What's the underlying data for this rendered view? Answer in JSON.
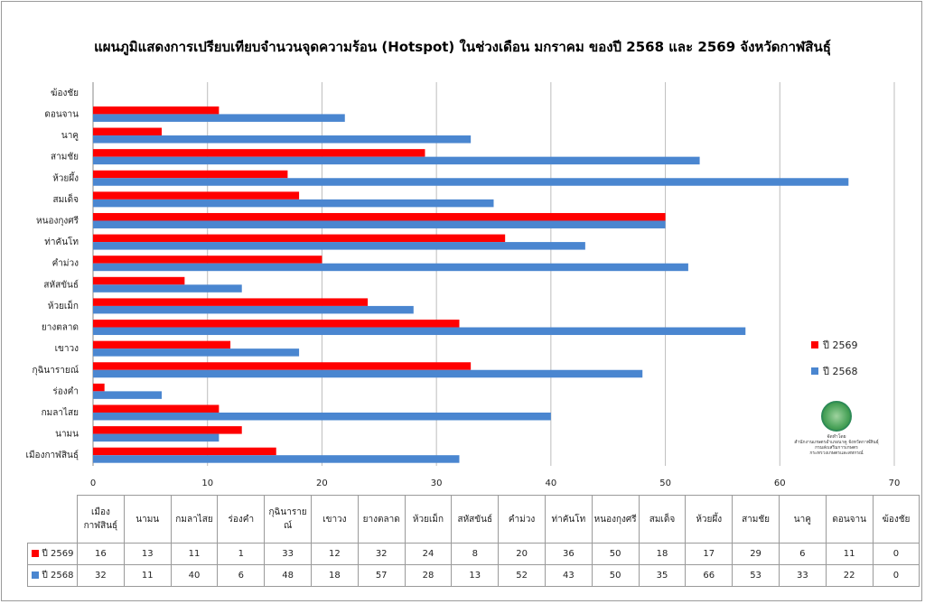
{
  "chart_data": {
    "type": "bar",
    "orientation": "horizontal",
    "title": "แผนภูมิแสดงการเปรียบเทียบจำนวนจุดความร้อน (Hotspot) ในช่วงเดือน มกราคม ของปี 2568 และ 2569 จังหวัดกาฬสินธุ์",
    "categories": [
      "เมืองกาฬสินธุ์",
      "นามน",
      "กมลาไสย",
      "ร่องคำ",
      "กุฉินารายณ์",
      "เขาวง",
      "ยางตลาด",
      "ห้วยเม็ก",
      "สหัสขันธ์",
      "คำม่วง",
      "ท่าคันโท",
      "หนองกุงศรี",
      "สมเด็จ",
      "ห้วยผึ้ง",
      "สามชัย",
      "นาคู",
      "ดอนจาน",
      "ฆ้องชัย"
    ],
    "table_header": [
      "เมือง\nกาฬสินธุ์",
      "นามน",
      "กมลาไสย",
      "ร่องคำ",
      "กุฉินารายณ์",
      "เขาวง",
      "ยางตลาด",
      "ห้วยเม็ก",
      "สหัสขันธ์",
      "คำม่วง",
      "ท่าคันโท",
      "หนองกุงศรี",
      "สมเด็จ",
      "ห้วยผึ้ง",
      "สามชัย",
      "นาคู",
      "ดอนจาน",
      "ฆ้องชัย"
    ],
    "series": [
      {
        "name": "ปี 2569",
        "color": "#ff0000",
        "values": [
          16,
          13,
          11,
          1,
          33,
          12,
          32,
          24,
          8,
          20,
          36,
          50,
          18,
          17,
          29,
          6,
          11,
          0
        ]
      },
      {
        "name": "ปี 2568",
        "color": "#4a86d0",
        "values": [
          32,
          11,
          40,
          6,
          48,
          18,
          57,
          28,
          13,
          52,
          43,
          50,
          35,
          66,
          53,
          33,
          22,
          0
        ]
      }
    ],
    "xlim": [
      0,
      70
    ],
    "xticks": [
      0,
      10,
      20,
      30,
      40,
      50,
      60,
      70
    ],
    "grid": true,
    "legend_position": "right"
  },
  "logo": {
    "icon": "seal-icon",
    "lines": [
      "จัดทำโดย",
      "สำนักงานเกษตรอำเภอนาคู จังหวัดกาฬสินธุ์",
      "กรมส่งเสริมการเกษตร",
      "กระทรวงเกษตรและสหกรณ์"
    ]
  }
}
